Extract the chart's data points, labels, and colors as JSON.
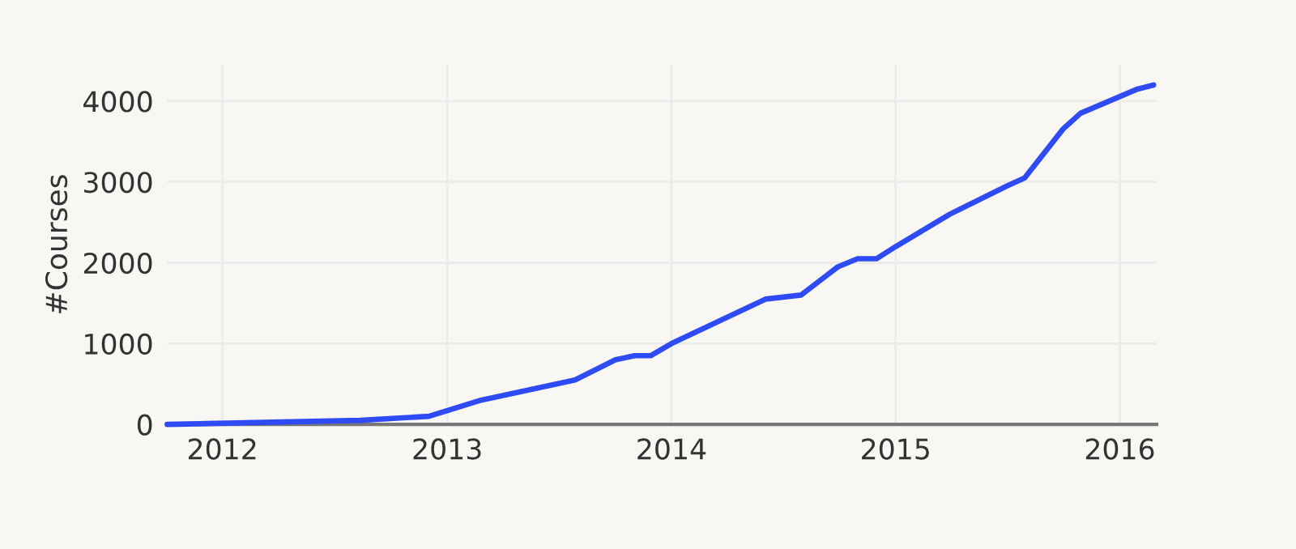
{
  "chart_data": {
    "type": "line",
    "ylabel": "#Courses",
    "x": [
      "2011-10-03",
      "2012-08-12",
      "2012-12-02",
      "2013-02-25",
      "2013-07-28",
      "2013-10-02",
      "2013-11-02",
      "2013-11-28",
      "2014-01-01",
      "2014-06-03",
      "2014-07-31",
      "2014-09-29",
      "2014-10-31",
      "2014-12-01",
      "2015-01-01",
      "2015-03-30",
      "2015-07-01",
      "2015-07-30",
      "2015-09-30",
      "2015-10-29",
      "2016-01-30",
      "2016-02-25"
    ],
    "series": [
      {
        "color": "#2e4bf5",
        "values": [
          0,
          50,
          100,
          300,
          550,
          800,
          850,
          850,
          1000,
          1550,
          1600,
          1950,
          2050,
          2050,
          2200,
          2600,
          2950,
          3050,
          3650,
          3850,
          4150,
          4200
        ]
      }
    ],
    "xlim": [
      "2011-10-03",
      "2016-03-01"
    ],
    "xticks": [
      "2012",
      "2013",
      "2014",
      "2015",
      "2016"
    ],
    "ylim": [
      0,
      4450
    ],
    "yticks": [
      0,
      1000,
      2000,
      3000,
      4000
    ],
    "grid": true,
    "marker": "none",
    "line_style": "solid"
  }
}
